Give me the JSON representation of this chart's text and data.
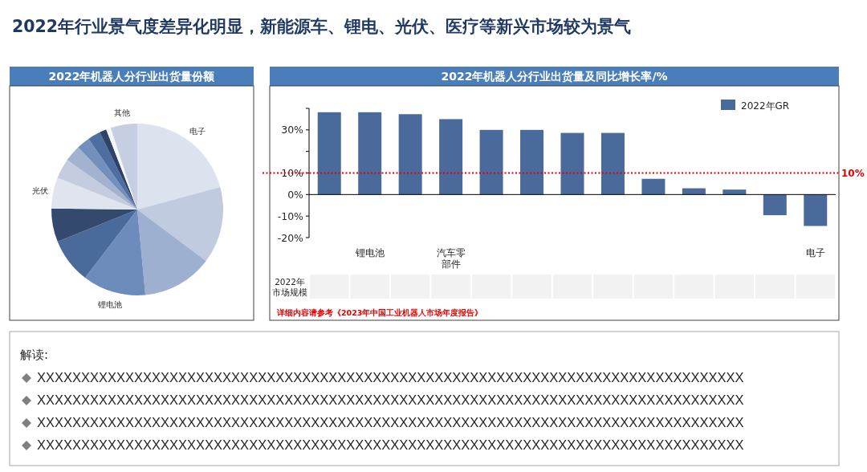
{
  "chart_data": [
    {
      "type": "other",
      "title": "2022年行业景气度差异化明显，新能源车、锂电、光伏、医疗等新兴市场较为景气"
    },
    {
      "type": "pie",
      "title": "2022年机器人分行业出货量份额",
      "categories": [
        "电子",
        null,
        null,
        "锂电池",
        null,
        null,
        "光伏",
        null,
        null,
        null,
        null,
        null,
        null,
        "其他"
      ],
      "values": [
        20.8,
        14.4,
        13.3,
        11.9,
        8.5,
        6.3,
        5.8,
        3.8,
        3.1,
        2.5,
        2.4,
        1.3,
        0.9,
        5.0
      ],
      "colors": [
        "#dde3ee",
        "#c1cbdf",
        "#9eb0cf",
        "#6d8bbb",
        "#4a6a9c",
        "#34496e",
        "#dfe4ef",
        "#c4cde0",
        "#a2b2cf",
        "#7390bd",
        "#4e6ea1",
        "#2f4268",
        "#f4f6fa",
        "#c6cfe1"
      ]
    },
    {
      "type": "bar",
      "title": "2022年机器人分行业出货量及同比增长率/%",
      "categories": [
        null,
        "锂电池",
        null,
        "汽车零部件",
        null,
        null,
        null,
        null,
        null,
        null,
        null,
        null,
        "电子"
      ],
      "series": [
        {
          "name": "2022年GR",
          "color": "#4a6a9c",
          "values": [
            38.2,
            38.2,
            37.3,
            35,
            30,
            30,
            28.6,
            28.6,
            7.3,
            2.9,
            2.3,
            -9.6,
            -14.6
          ]
        }
      ],
      "ylim": [
        -20,
        40
      ],
      "yticks": [
        {
          "value": -20,
          "label": "-20%"
        },
        {
          "value": -10,
          "label": "-10%"
        },
        {
          "value": 0,
          "label": "0%"
        },
        {
          "value": 10,
          "label": "10%"
        },
        {
          "value": 20,
          "label": null
        },
        {
          "value": 30,
          "label": "30%"
        },
        {
          "value": 40,
          "label": null
        }
      ],
      "legend": "top right",
      "ref_lines": [
        {
          "axis": "y",
          "value": 10,
          "label": "10%",
          "color": "#e00000",
          "line_style": "dotted"
        }
      ],
      "annotations": [
        "2022年市场规模",
        "详细内容请参考《2023年中国工业机器人市场年度报告》"
      ]
    },
    {
      "type": "other",
      "title": "解读:",
      "annotations": [
        "XXXXXXXXXXXXXXXXXXXXXXXXXXXXXXXXXXXXXXXXXXXXXXXXXXXXXXXXXXXXXXXXXXXXXXXXXXXXXXXX",
        "XXXXXXXXXXXXXXXXXXXXXXXXXXXXXXXXXXXXXXXXXXXXXXXXXXXXXXXXXXXXXXXXXXXXXXXXXXXXXXXX",
        "XXXXXXXXXXXXXXXXXXXXXXXXXXXXXXXXXXXXXXXXXXXXXXXXXXXXXXXXXXXXXXXXXXXXXXXXXXXXXXXX",
        "XXXXXXXXXXXXXXXXXXXXXXXXXXXXXXXXXXXXXXXXXXXXXXXXXXXXXXXXXXXXXXXXXXXXXXXXXXXXXXXX"
      ]
    }
  ]
}
